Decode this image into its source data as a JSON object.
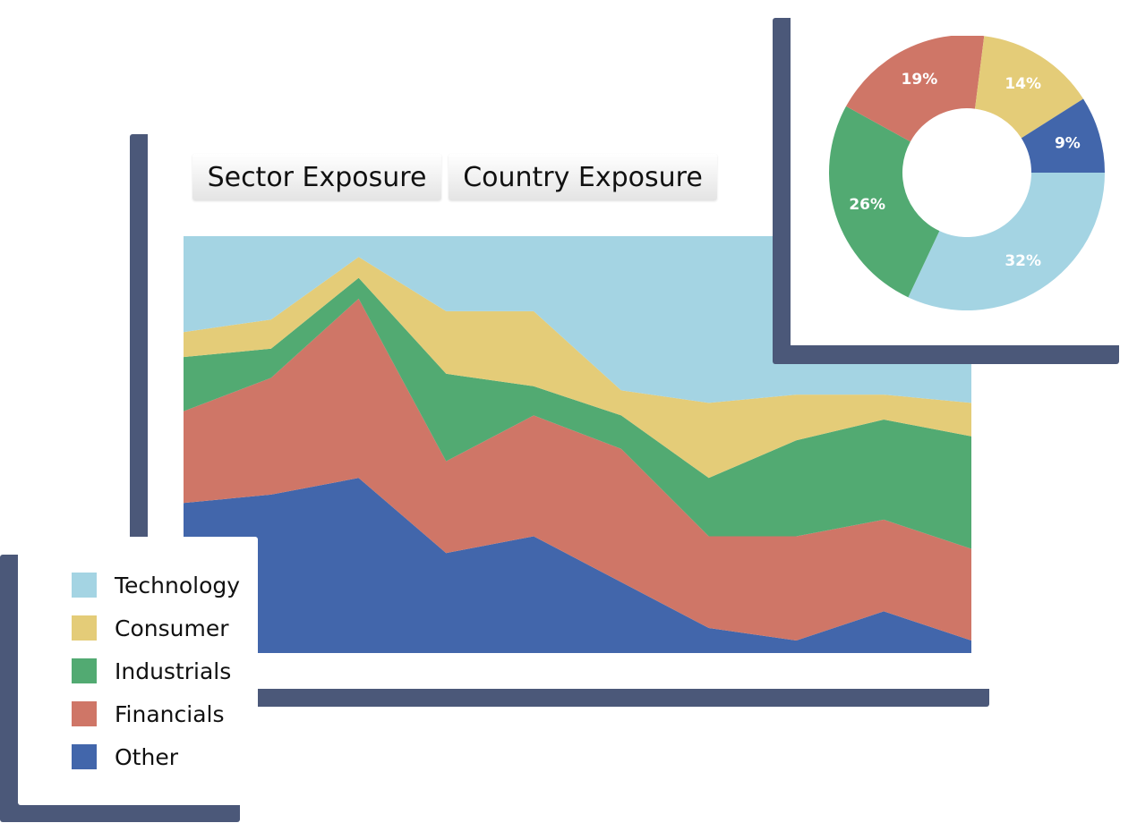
{
  "tabs": [
    {
      "label": "Sector Exposure"
    },
    {
      "label": "Country Exposure"
    }
  ],
  "colors": {
    "Technology": "#a4d4e3",
    "Consumer": "#e4cc78",
    "Industrials": "#52aa72",
    "Financials": "#cf7667",
    "Other": "#4266ab",
    "frame": "#4b5879"
  },
  "legend": [
    {
      "label": "Technology",
      "color": "#a4d4e3"
    },
    {
      "label": "Consumer",
      "color": "#e4cc78"
    },
    {
      "label": "Industrials",
      "color": "#52aa72"
    },
    {
      "label": "Financials",
      "color": "#cf7667"
    },
    {
      "label": "Other",
      "color": "#4266ab"
    }
  ],
  "chart_data": [
    {
      "type": "area",
      "stacked": true,
      "x": [
        1,
        2,
        3,
        4,
        5,
        6,
        7,
        8,
        9,
        10
      ],
      "ylim": [
        0,
        100
      ],
      "series": [
        {
          "name": "Other",
          "values": [
            36,
            38,
            42,
            24,
            28,
            17,
            6,
            3,
            10,
            3
          ]
        },
        {
          "name": "Financials",
          "values": [
            22,
            28,
            43,
            22,
            29,
            32,
            22,
            25,
            22,
            22
          ]
        },
        {
          "name": "Industrials",
          "values": [
            13,
            7,
            5,
            21,
            7,
            8,
            14,
            23,
            24,
            27
          ]
        },
        {
          "name": "Consumer",
          "values": [
            6,
            7,
            5,
            15,
            18,
            6,
            18,
            11,
            6,
            8
          ]
        },
        {
          "name": "Technology",
          "values": [
            23,
            20,
            5,
            18,
            18,
            37,
            40,
            38,
            38,
            40
          ]
        }
      ]
    },
    {
      "type": "pie",
      "donut": true,
      "slices": [
        {
          "name": "Technology",
          "label": "32%",
          "value": 32
        },
        {
          "name": "Industrials",
          "label": "26%",
          "value": 26
        },
        {
          "name": "Financials",
          "label": "19%",
          "value": 19
        },
        {
          "name": "Consumer",
          "label": "14%",
          "value": 14
        },
        {
          "name": "Other",
          "label": "9%",
          "value": 9
        }
      ]
    }
  ]
}
